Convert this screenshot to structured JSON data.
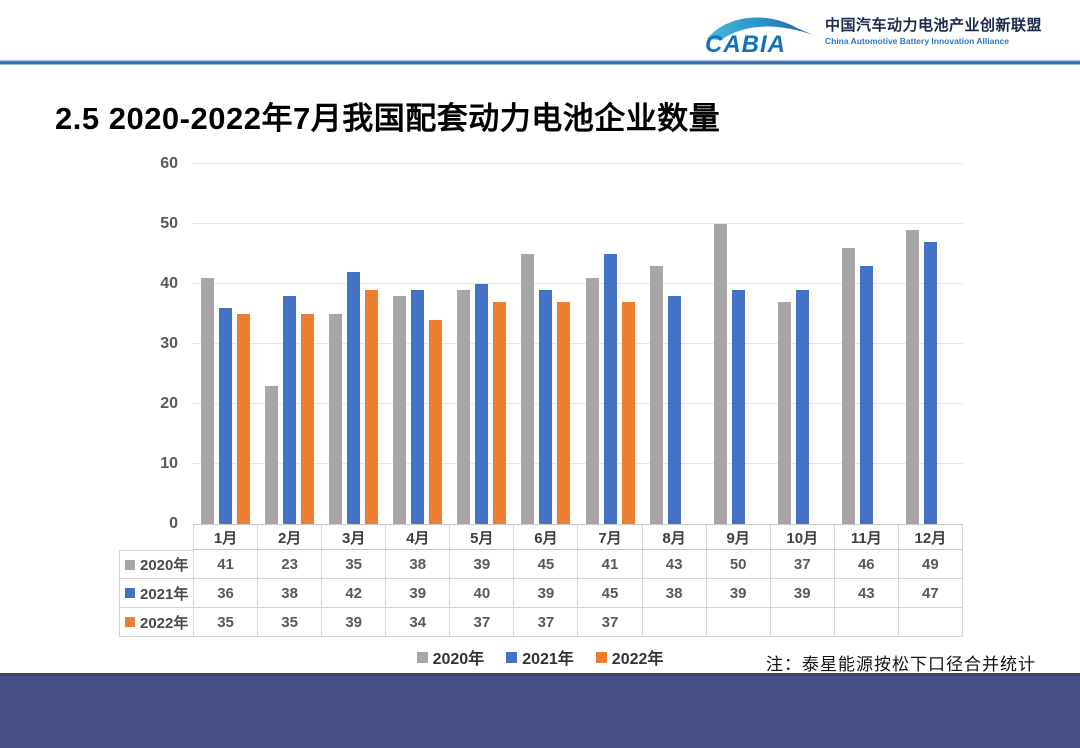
{
  "header": {
    "logo_text": "CABIA",
    "org_name_zh": "中国汽车动力电池产业创新联盟",
    "org_name_en": "China Automotive Battery Innovation Alliance"
  },
  "title": "2.5 2020-2022年7月我国配套动力电池企业数量",
  "note": "注：泰星能源按松下口径合并统计",
  "colors": {
    "bar_2020": "#A6A6A6",
    "bar_2021": "#4472C4",
    "bar_2022": "#ED7D31",
    "footer_bar": "#454E85",
    "header_line": "#3A67AE",
    "gridline": "#E6E6E6",
    "table_border": "#D5D5D5",
    "axis_text": "#595959"
  },
  "chart_data": {
    "type": "bar",
    "title": "2020-2022年7月我国配套动力电池企业数量",
    "categories": [
      "1月",
      "2月",
      "3月",
      "4月",
      "5月",
      "6月",
      "7月",
      "8月",
      "9月",
      "10月",
      "11月",
      "12月"
    ],
    "series": [
      {
        "name": "2020年",
        "color": "#A6A6A6",
        "values": [
          41,
          23,
          35,
          38,
          39,
          45,
          41,
          43,
          50,
          37,
          46,
          49
        ]
      },
      {
        "name": "2021年",
        "color": "#4472C4",
        "values": [
          36,
          38,
          42,
          39,
          40,
          39,
          45,
          38,
          39,
          39,
          43,
          47
        ]
      },
      {
        "name": "2022年",
        "color": "#ED7D31",
        "values": [
          35,
          35,
          39,
          34,
          37,
          37,
          37,
          null,
          null,
          null,
          null,
          null
        ]
      }
    ],
    "xlabel": "",
    "ylabel": "",
    "ylim": [
      0,
      60
    ],
    "yticks": [
      0,
      10,
      20,
      30,
      40,
      50,
      60
    ],
    "grid": true,
    "legend_position": "bottom",
    "data_table_shown": true
  }
}
